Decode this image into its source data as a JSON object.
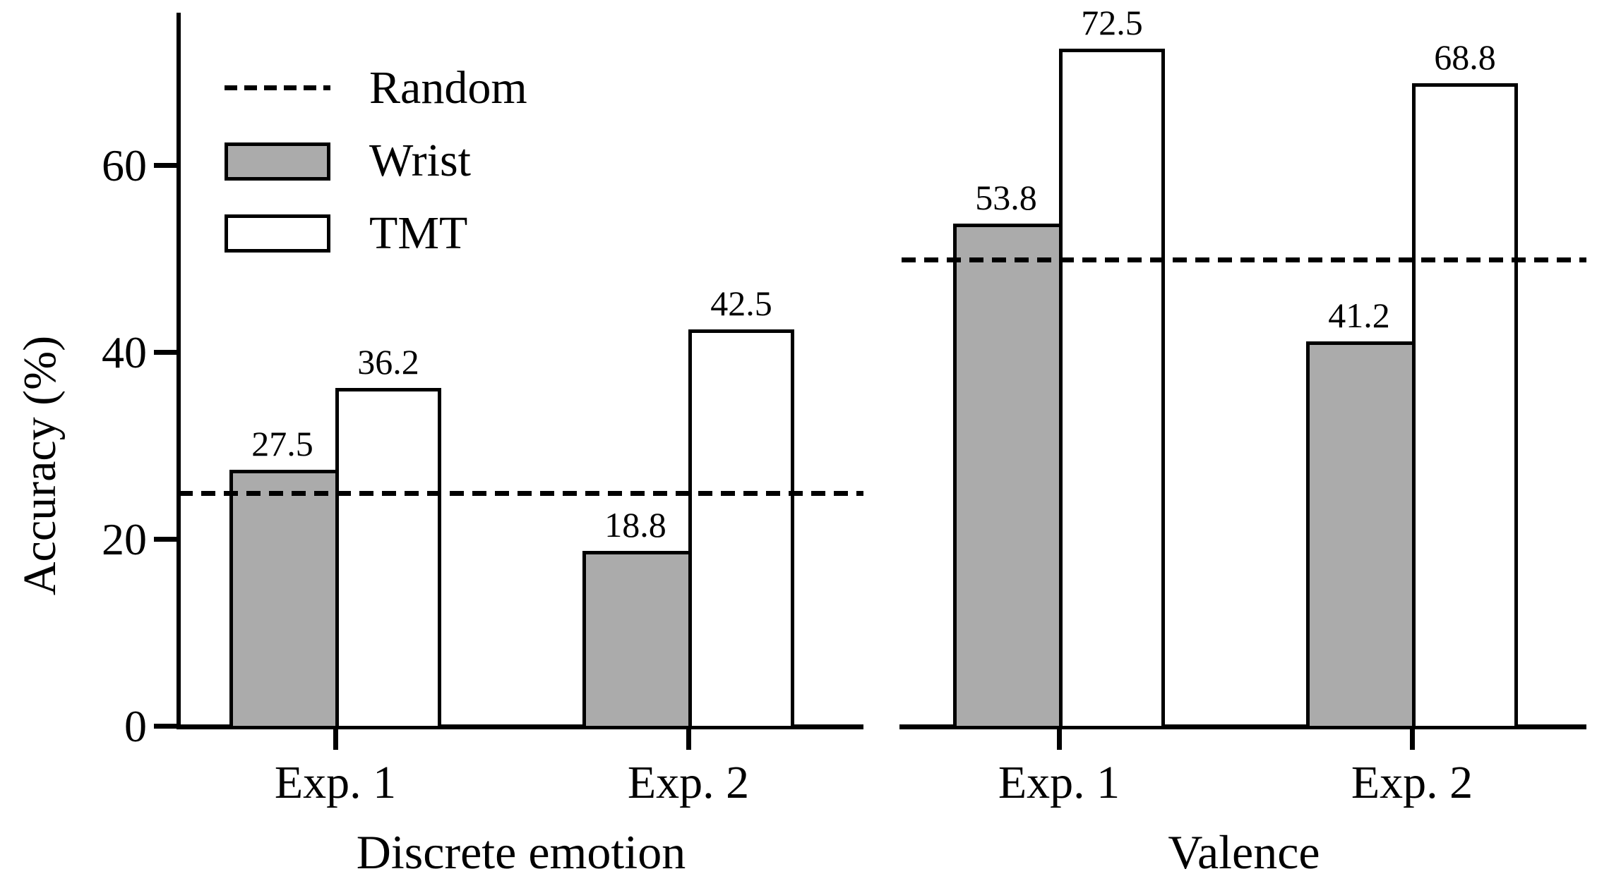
{
  "chart_data": {
    "type": "bar",
    "title": "",
    "ylabel": "Accuracy (%)",
    "ylim": [
      0,
      76
    ],
    "yticks": [
      0,
      20,
      40,
      60
    ],
    "grid": false,
    "legend_position": "upper-left",
    "legend": [
      {
        "label": "Random",
        "swatch": "dashed-line"
      },
      {
        "label": "Wrist",
        "swatch": "filled-box"
      },
      {
        "label": "TMT",
        "swatch": "open-box"
      }
    ],
    "series_names": [
      "Wrist",
      "TMT"
    ],
    "colors": {
      "wrist_fill": "#ababab",
      "tmt_fill": "#ffffff",
      "line": "#000000",
      "background": "#ffffff"
    },
    "bar_value_labels_shown": true,
    "panels": [
      {
        "xlabel": "Discrete emotion",
        "categories": [
          "Exp. 1",
          "Exp. 2"
        ],
        "series": [
          {
            "name": "Wrist",
            "values": [
              27.5,
              18.8
            ]
          },
          {
            "name": "TMT",
            "values": [
              36.2,
              42.5
            ]
          }
        ],
        "random_baseline": 25
      },
      {
        "xlabel": "Valence",
        "categories": [
          "Exp. 1",
          "Exp. 2"
        ],
        "series": [
          {
            "name": "Wrist",
            "values": [
              53.8,
              41.2
            ]
          },
          {
            "name": "TMT",
            "values": [
              72.5,
              68.8
            ]
          }
        ],
        "random_baseline": 50
      }
    ]
  }
}
